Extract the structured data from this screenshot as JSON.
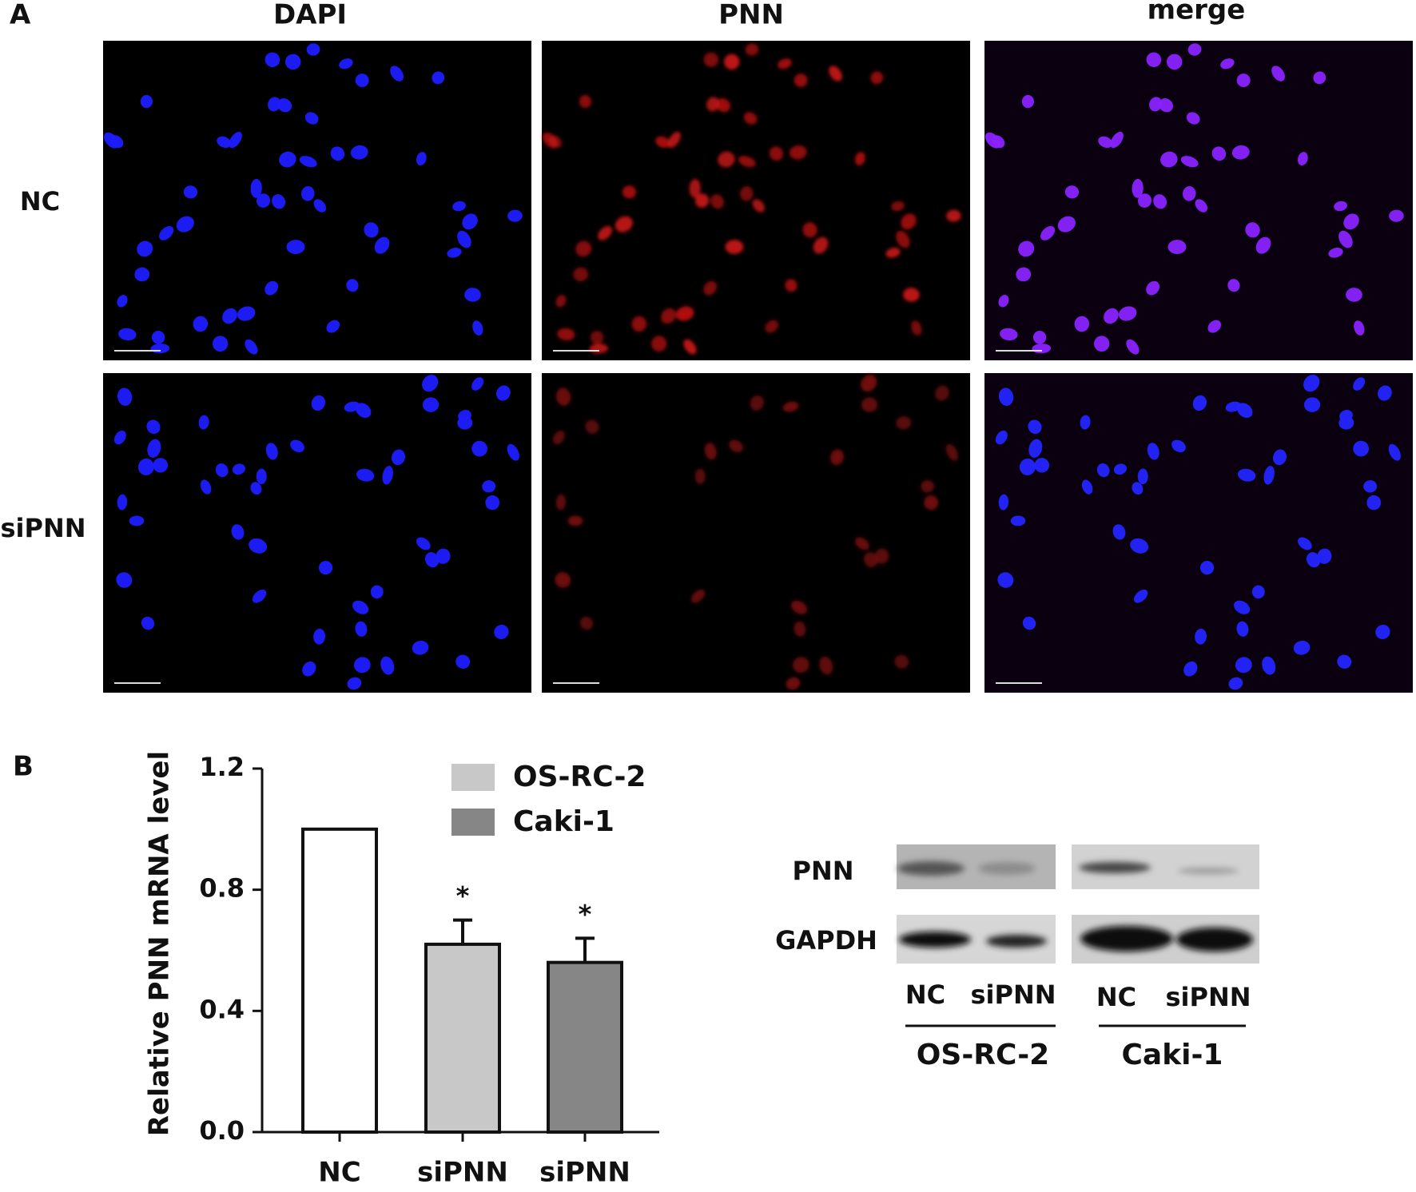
{
  "panel_a": {
    "label": "A",
    "columns": [
      "DAPI",
      "PNN",
      "merge"
    ],
    "rows": [
      "NC",
      "siPNN"
    ]
  },
  "chart_data": {
    "type": "bar",
    "label": "B",
    "ylabel": "Relative PNN mRNA level",
    "categories": [
      "NC",
      "siPNN",
      "siPNN"
    ],
    "values": [
      1.0,
      0.62,
      0.56
    ],
    "errors": [
      null,
      0.08,
      0.08
    ],
    "colors": [
      "#ffffff",
      "#c8c8c8",
      "#868686"
    ],
    "annotations": [
      null,
      "*",
      "*"
    ],
    "legend": [
      {
        "name": "OS-RC-2",
        "color": "#c8c8c8"
      },
      {
        "name": "Caki-1",
        "color": "#868686"
      }
    ],
    "ylim": [
      0,
      1.2
    ],
    "yticks": [
      {
        "value": 0,
        "label": "0.0"
      },
      {
        "value": 0.4,
        "label": "0.4"
      },
      {
        "value": 0.8,
        "label": "0.8"
      },
      {
        "value": 1.2,
        "label": "1.2"
      }
    ]
  },
  "western_blot": {
    "bands": [
      "PNN",
      "GAPDH"
    ],
    "lanes": [
      "NC",
      "siPNN",
      "NC",
      "siPNN"
    ],
    "groups": [
      "OS-RC-2",
      "Caki-1"
    ]
  }
}
